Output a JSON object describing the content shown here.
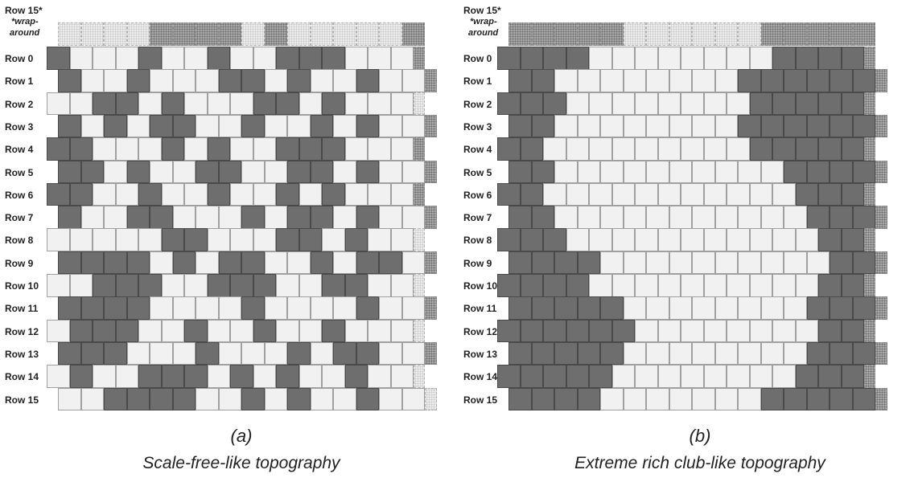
{
  "panels": [
    {
      "id": "a",
      "letter": "(a)",
      "caption": "Scale-free-like topography",
      "wrap_label": "Row 15*",
      "wrap_note_1": "*wrap-",
      "wrap_note_2": "around",
      "row_labels": [
        "Row 0",
        "Row 1",
        "Row 2",
        "Row 3",
        "Row 4",
        "Row 5",
        "Row 6",
        "Row 7",
        "Row 8",
        "Row 9",
        "Row 10",
        "Row 11",
        "Row 12",
        "Row 13",
        "Row 14",
        "Row 15"
      ],
      "rows": [
        "1000100100111000",
        "1001000110100100",
        "0011010001101000",
        "1010110010010100",
        "1100010100111000",
        "1101001100110100",
        "1100100100101000",
        "1001100010110100",
        "0000011000110100",
        "1111010110010110",
        "0011100111001100",
        "1111000010000100",
        "0111001001001000",
        "1110001000101100",
        "0100111010100100",
        "0011110010100100"
      ],
      "wrap_row": "0000111101000001"
    },
    {
      "id": "b",
      "letter": "(b)",
      "caption": "Extreme rich club-like topography",
      "wrap_label": "Row 15*",
      "wrap_note_1": "*wrap-",
      "wrap_note_2": "around",
      "row_labels": [
        "Row 0",
        "Row 1",
        "Row 2",
        "Row 3",
        "Row 4",
        "Row 5",
        "Row 6",
        "Row 7",
        "Row 8",
        "Row 9",
        "Row 10",
        "Row 11",
        "Row 12",
        "Row 13",
        "Row 14",
        "Row 15"
      ],
      "rows": [
        "1111000000001111",
        "1100000000111111",
        "1110000000011111",
        "1100000000111111",
        "1100000000011111",
        "1100000000001111",
        "1100000000000111",
        "1100000000000111",
        "1110000000000011",
        "1111000000000011",
        "1111000000000011",
        "1111100000000111",
        "1111110000000011",
        "1111100000000111",
        "1111100000000111",
        "1111000000011111"
      ],
      "wrap_row": "1111100000011111"
    }
  ]
}
